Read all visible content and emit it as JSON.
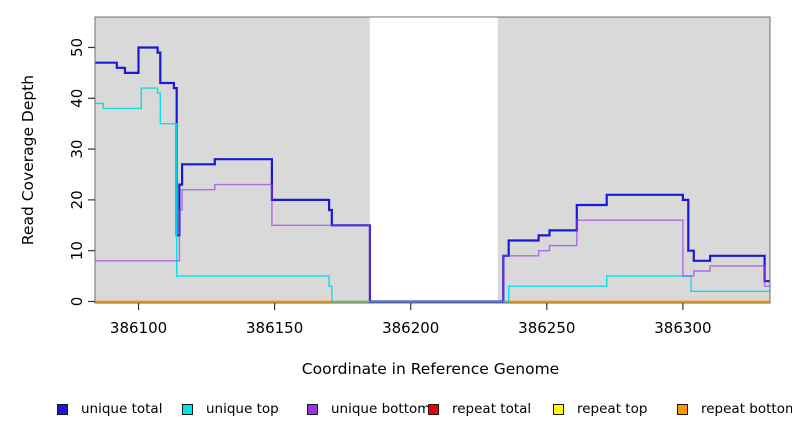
{
  "figure": {
    "x_axis_label": "Coordinate in Reference Genome",
    "y_axis_label": "Read Coverage Depth"
  },
  "legend": {
    "items": [
      {
        "label": "unique total",
        "color": "#1a1ad6"
      },
      {
        "label": "unique top",
        "color": "#00e6e6"
      },
      {
        "label": "unique bottom",
        "color": "#9933dd"
      },
      {
        "label": "repeat total",
        "color": "#ee0000"
      },
      {
        "label": "repeat top",
        "color": "#ffff00"
      },
      {
        "label": "repeat bottom",
        "color": "#ff9900"
      }
    ]
  },
  "chart_data": {
    "type": "line",
    "subtype": "step-coverage",
    "title": "",
    "xlabel": "Coordinate in Reference Genome",
    "ylabel": "Read Coverage Depth",
    "xlim": [
      386084,
      386332
    ],
    "ylim": [
      0,
      54
    ],
    "ylim_draw": [
      -0.3,
      56.0
    ],
    "x_ticks": [
      386100,
      386150,
      386200,
      386250,
      386300
    ],
    "y_ticks": [
      0,
      10,
      20,
      30,
      40,
      50
    ],
    "grid": false,
    "legend_position": "bottom",
    "background_regions": [
      {
        "name": "unique-region-left",
        "from": 386084,
        "to": 386185,
        "color": "#d9d9d9"
      },
      {
        "name": "repeat-region",
        "from": 386185,
        "to": 386232,
        "color": "#ffffff"
      },
      {
        "name": "unique-region-right",
        "from": 386232,
        "to": 386332,
        "color": "#d9d9d9"
      }
    ],
    "series": [
      {
        "name": "repeat total",
        "color": "#ee0000",
        "width": 1.4,
        "opacity": 1,
        "steps": [
          [
            386084,
            0
          ]
        ]
      },
      {
        "name": "repeat top",
        "color": "#ffff00",
        "width": 1.4,
        "opacity": 1,
        "steps": [
          [
            386084,
            0
          ]
        ]
      },
      {
        "name": "repeat bottom",
        "color": "#ff9900",
        "width": 1.7,
        "opacity": 1,
        "steps": [
          [
            386084,
            0
          ]
        ]
      },
      {
        "name": "unique total",
        "color": "#1a1ad6",
        "width": 2.2,
        "opacity": 1,
        "steps": [
          [
            386084,
            47
          ],
          [
            386092,
            46
          ],
          [
            386095,
            45
          ],
          [
            386100,
            50
          ],
          [
            386107,
            49
          ],
          [
            386108,
            43
          ],
          [
            386113,
            42
          ],
          [
            386114,
            13
          ],
          [
            386115,
            23
          ],
          [
            386116,
            27
          ],
          [
            386128,
            28
          ],
          [
            386149,
            20
          ],
          [
            386170,
            18
          ],
          [
            386171,
            15
          ],
          [
            386185,
            0
          ],
          [
            386234,
            9
          ],
          [
            386236,
            12
          ],
          [
            386247,
            13
          ],
          [
            386251,
            14
          ],
          [
            386261,
            19
          ],
          [
            386272,
            21
          ],
          [
            386300,
            20
          ],
          [
            386302,
            10
          ],
          [
            386304,
            8
          ],
          [
            386310,
            9
          ],
          [
            386330,
            4
          ]
        ]
      },
      {
        "name": "unique top",
        "color": "#00e0e0",
        "width": 1.4,
        "opacity": 0.95,
        "steps": [
          [
            386084,
            39
          ],
          [
            386087,
            38
          ],
          [
            386101,
            42
          ],
          [
            386107,
            41
          ],
          [
            386108,
            35
          ],
          [
            386114,
            5
          ],
          [
            386170,
            3
          ],
          [
            386171,
            0
          ],
          [
            386236,
            3
          ],
          [
            386272,
            5
          ],
          [
            386303,
            2
          ]
        ]
      },
      {
        "name": "unique bottom",
        "color": "#9933dd",
        "width": 1.4,
        "opacity": 0.65,
        "steps": [
          [
            386084,
            8
          ],
          [
            386115,
            18
          ],
          [
            386116,
            22
          ],
          [
            386128,
            23
          ],
          [
            386149,
            15
          ],
          [
            386185,
            0
          ],
          [
            386234,
            9
          ],
          [
            386247,
            10
          ],
          [
            386251,
            11
          ],
          [
            386261,
            16
          ],
          [
            386300,
            5
          ],
          [
            386304,
            6
          ],
          [
            386310,
            7
          ],
          [
            386330,
            3
          ]
        ]
      }
    ]
  }
}
